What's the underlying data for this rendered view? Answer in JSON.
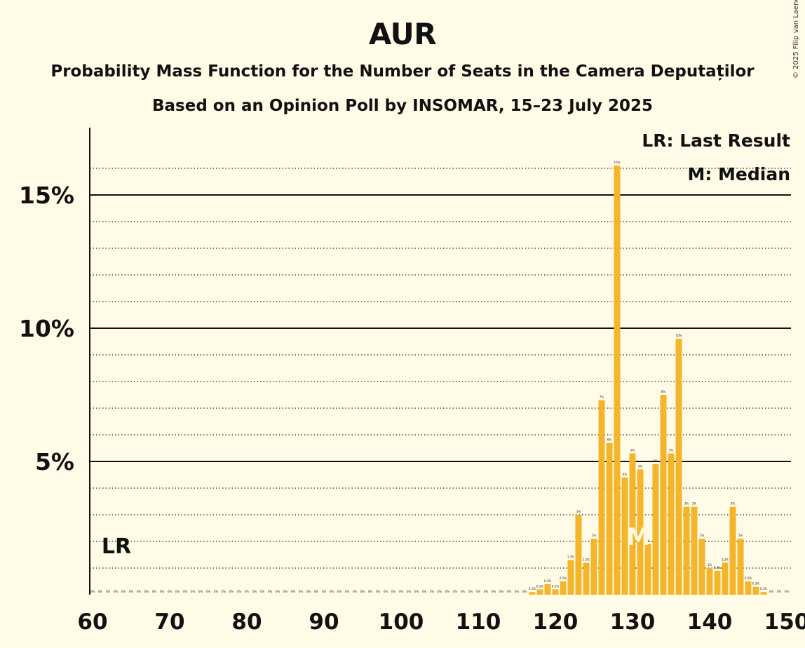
{
  "title": "AUR",
  "subtitle": "Probability Mass Function for the Number of Seats in the Camera Deputaților",
  "poll_line": "Based on an Opinion Poll by INSOMAR, 15–23 July 2025",
  "copyright": "© 2025 Filip van Laenen",
  "colors": {
    "background": "#fffbe6",
    "bar": "#f5b52a",
    "text": "#111111"
  },
  "chart_data": {
    "type": "bar",
    "x": [
      60,
      61,
      62,
      63,
      64,
      65,
      66,
      67,
      68,
      69,
      70,
      71,
      72,
      73,
      74,
      75,
      76,
      77,
      78,
      79,
      80,
      81,
      82,
      83,
      84,
      85,
      86,
      87,
      88,
      89,
      90,
      91,
      92,
      93,
      94,
      95,
      96,
      97,
      98,
      99,
      100,
      101,
      102,
      103,
      104,
      105,
      106,
      107,
      108,
      109,
      110,
      111,
      112,
      113,
      114,
      115,
      116,
      117,
      118,
      119,
      120,
      121,
      122,
      123,
      124,
      125,
      126,
      127,
      128,
      129,
      130,
      131,
      132,
      133,
      134,
      135,
      136,
      137,
      138,
      139,
      140,
      141,
      142,
      143,
      144,
      145,
      146,
      147,
      148,
      149,
      150
    ],
    "values": [
      0,
      0,
      0,
      0,
      0,
      0,
      0,
      0,
      0,
      0,
      0,
      0,
      0,
      0,
      0,
      0,
      0,
      0,
      0,
      0,
      0,
      0,
      0,
      0,
      0,
      0,
      0,
      0,
      0,
      0,
      0,
      0,
      0,
      0,
      0,
      0,
      0,
      0,
      0,
      0,
      0,
      0,
      0,
      0,
      0,
      0,
      0,
      0,
      0,
      0,
      0,
      0,
      0,
      0,
      0,
      0,
      0,
      0.1,
      0.2,
      0.4,
      0.2,
      0.5,
      1.3,
      3.0,
      1.2,
      2.1,
      7.3,
      5.7,
      16.1,
      4.4,
      5.3,
      4.7,
      1.9,
      4.9,
      7.5,
      5.3,
      9.6,
      3.3,
      3.3,
      2.1,
      1.0,
      0.9,
      1.2,
      3.3,
      2.1,
      0.5,
      0.3,
      0.1,
      0.0,
      0.0,
      0.0
    ],
    "labels": [
      "0%",
      "0%",
      "0%",
      "0%",
      "0%",
      "0%",
      "0%",
      "0%",
      "0%",
      "0%",
      "0%",
      "0%",
      "0%",
      "0%",
      "0%",
      "0%",
      "0%",
      "0%",
      "0%",
      "0%",
      "0%",
      "0%",
      "0%",
      "0%",
      "0%",
      "0%",
      "0%",
      "0%",
      "0%",
      "0%",
      "0%",
      "0%",
      "0%",
      "0%",
      "0%",
      "0%",
      "0%",
      "0%",
      "0%",
      "0%",
      "0%",
      "0%",
      "0%",
      "0%",
      "0%",
      "0%",
      "0%",
      "0%",
      "0%",
      "0%",
      "0%",
      "0%",
      "0%",
      "0%",
      "0%",
      "0%",
      "0%",
      "0.1%",
      "0.2%",
      "0.4%",
      "0.2%",
      "0.5%",
      "1.3%",
      "3%",
      "1.2%",
      "2%",
      "7%",
      "6%",
      "16%",
      "4%",
      "5%",
      "5%",
      "2%",
      "5%",
      "8%",
      "5%",
      "10%",
      "3%",
      "3%",
      "2%",
      "1%",
      "0.9%",
      "1.2%",
      "3%",
      "2%",
      "0.5%",
      "0.3%",
      "0.1%",
      "0%",
      "0%",
      "0%"
    ],
    "xlim": [
      60,
      150
    ],
    "xticks": [
      "60",
      "70",
      "80",
      "90",
      "100",
      "110",
      "120",
      "130",
      "140",
      "150"
    ],
    "ylim": [
      0,
      17.5
    ],
    "yticks": [
      {
        "value": 5,
        "label": "5%"
      },
      {
        "value": 10,
        "label": "10%"
      },
      {
        "value": 15,
        "label": "15%"
      }
    ],
    "minor_gridlines": true,
    "last_result_seat": 62,
    "last_result_marker": "LR",
    "median_seat": 131,
    "median_marker": "M",
    "legend": {
      "position": "top-right",
      "entries": [
        "LR: Last Result",
        "M: Median"
      ]
    }
  }
}
